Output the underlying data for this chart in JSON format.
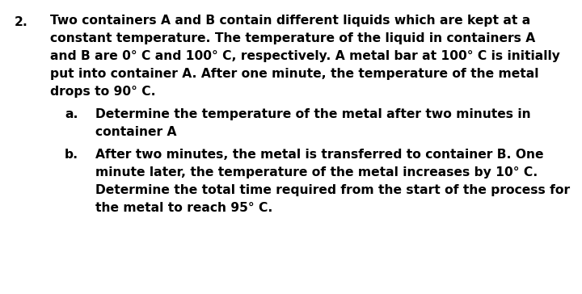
{
  "background_color": "#ffffff",
  "text_color": "#000000",
  "number": "2.",
  "main_line1": "Two containers A and B contain different liquids which are kept at a",
  "main_line2": "constant temperature. The temperature of the liquid in containers A",
  "main_line3": "and B are 0° C and 100° C, respectively. A metal bar at 100° C is initially",
  "main_line4": "put into container A. After one minute, the temperature of the metal",
  "main_line5": "drops to 90° C.",
  "item_a_label": "a.",
  "item_a_line1": "Determine the temperature of the metal after two minutes in",
  "item_a_line2": "container A",
  "item_b_label": "b.",
  "item_b_line1": "After two minutes, the metal is transferred to container B. One",
  "item_b_line2": "minute later, the temperature of the metal increases by 10° C.",
  "item_b_line3": "Determine the total time required from the start of the process for",
  "item_b_line4": "the metal to reach 95° C.",
  "font_size": 11.2,
  "font_family": "Arial",
  "figsize": [
    7.2,
    3.64
  ],
  "dpi": 100
}
